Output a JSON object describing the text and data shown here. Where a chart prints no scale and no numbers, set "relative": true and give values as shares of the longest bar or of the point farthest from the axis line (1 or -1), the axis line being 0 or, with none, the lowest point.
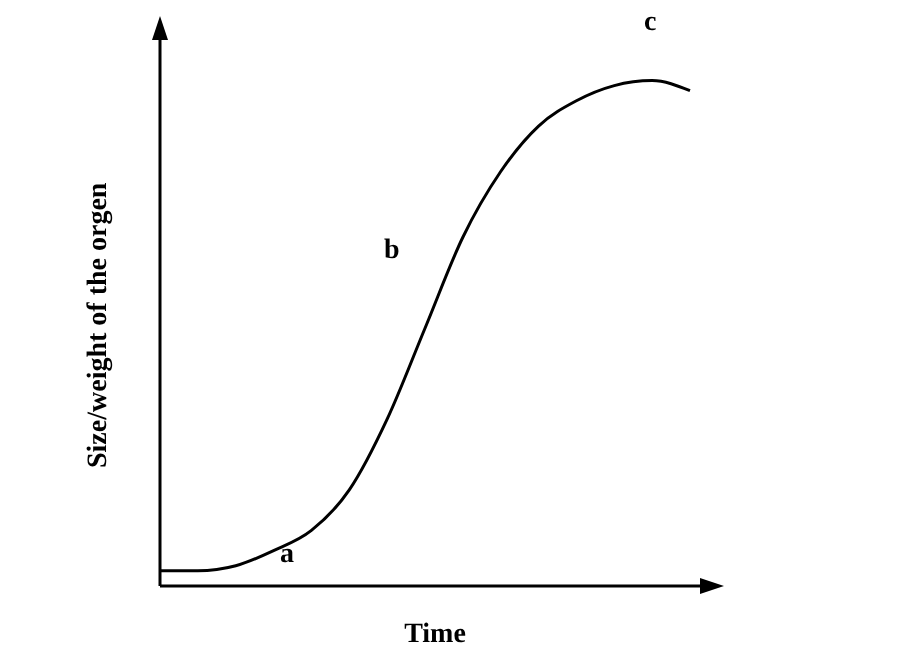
{
  "chart_data": {
    "type": "line",
    "relative": true,
    "xlabel": "Time",
    "ylabel": "Size/weight of the orgen",
    "categories": [
      null,
      null,
      null,
      null,
      null,
      null,
      null,
      null,
      null,
      null,
      null,
      null,
      null,
      null,
      null
    ],
    "series": [
      {
        "color": "#000000",
        "values": [
          0.03,
          0.03,
          0.04,
          0.07,
          0.11,
          0.19,
          0.33,
          0.51,
          0.69,
          0.82,
          0.91,
          0.96,
          0.99,
          1,
          0.98
        ]
      }
    ],
    "annotations": [
      "a",
      "b",
      "c"
    ],
    "grid": false,
    "legend": false,
    "marker": "none",
    "line_style": "solid"
  }
}
